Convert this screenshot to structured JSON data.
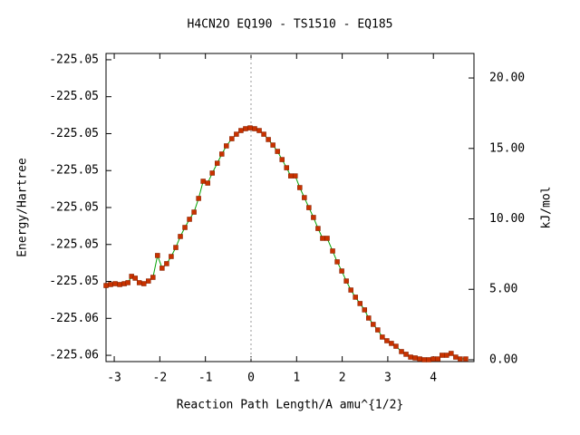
{
  "chart_data": {
    "type": "line",
    "title": "H4CN2O   EQ190 - TS1510 - EQ185",
    "xlabel": "Reaction Path Length/A amu^{1/2}",
    "ylabel": "Energy/Hartree",
    "y2label": "kJ/mol",
    "xlim": [
      -3.18,
      4.89
    ],
    "xticks": [
      -3,
      -2,
      -1,
      0,
      1,
      2,
      3,
      4
    ],
    "ylim": [
      -225.05667,
      -225.04833
    ],
    "yticks": [
      {
        "value": -225.0565,
        "label": "-225.06"
      },
      {
        "value": -225.0555,
        "label": "-225.06"
      },
      {
        "value": -225.0545,
        "label": "-225.05"
      },
      {
        "value": -225.0535,
        "label": "-225.05"
      },
      {
        "value": -225.0525,
        "label": "-225.05"
      },
      {
        "value": -225.0515,
        "label": "-225.05"
      },
      {
        "value": -225.0505,
        "label": "-225.05"
      },
      {
        "value": -225.0495,
        "label": "-225.05"
      },
      {
        "value": -225.0485,
        "label": "-225.05"
      }
    ],
    "y2lim": [
      -0.13,
      21.74
    ],
    "y2ticks": [
      {
        "value": 0,
        "label": "0.00"
      },
      {
        "value": 5,
        "label": "5.00"
      },
      {
        "value": 10,
        "label": "10.00"
      },
      {
        "value": 15,
        "label": "15.00"
      },
      {
        "value": 20,
        "label": "20.00"
      }
    ],
    "vline": 0,
    "x": [
      -3.18,
      -3.08,
      -2.98,
      -2.88,
      -2.78,
      -2.7,
      -2.62,
      -2.54,
      -2.45,
      -2.35,
      -2.25,
      -2.15,
      -2.05,
      -1.95,
      -1.85,
      -1.75,
      -1.65,
      -1.55,
      -1.45,
      -1.35,
      -1.25,
      -1.15,
      -1.05,
      -0.95,
      -0.85,
      -0.74,
      -0.64,
      -0.54,
      -0.42,
      -0.32,
      -0.22,
      -0.12,
      -0.02,
      0.08,
      0.18,
      0.28,
      0.38,
      0.48,
      0.58,
      0.68,
      0.78,
      0.87,
      0.97,
      1.07,
      1.17,
      1.27,
      1.37,
      1.47,
      1.57,
      1.67,
      1.79,
      1.89,
      1.99,
      2.09,
      2.19,
      2.29,
      2.39,
      2.49,
      2.58,
      2.68,
      2.78,
      2.88,
      2.98,
      3.08,
      3.18,
      3.3,
      3.4,
      3.5,
      3.6,
      3.7,
      3.8,
      3.9,
      4.0,
      4.1,
      4.19,
      4.29,
      4.39,
      4.49,
      4.59,
      4.71
    ],
    "series": [
      {
        "color": "#00a000",
        "marker_color": "#c83200",
        "axis": "y2",
        "values": [
          5.27,
          5.34,
          5.4,
          5.34,
          5.4,
          5.47,
          5.92,
          5.79,
          5.47,
          5.4,
          5.59,
          5.85,
          7.4,
          6.5,
          6.82,
          7.33,
          7.97,
          8.75,
          9.39,
          9.97,
          10.48,
          11.45,
          12.67,
          12.54,
          13.25,
          13.95,
          14.6,
          15.18,
          15.69,
          16.01,
          16.27,
          16.4,
          16.46,
          16.4,
          16.27,
          16.01,
          15.63,
          15.24,
          14.79,
          14.21,
          13.63,
          13.05,
          13.05,
          12.22,
          11.51,
          10.8,
          10.1,
          9.32,
          8.62,
          8.62,
          7.72,
          6.95,
          6.3,
          5.59,
          4.95,
          4.44,
          3.99,
          3.54,
          2.96,
          2.51,
          2.12,
          1.61,
          1.35,
          1.16,
          0.96,
          0.58,
          0.39,
          0.19,
          0.13,
          0.06,
          0.0,
          0.0,
          0.06,
          0.06,
          0.32,
          0.32,
          0.45,
          0.19,
          0.06,
          0.06
        ]
      }
    ]
  }
}
